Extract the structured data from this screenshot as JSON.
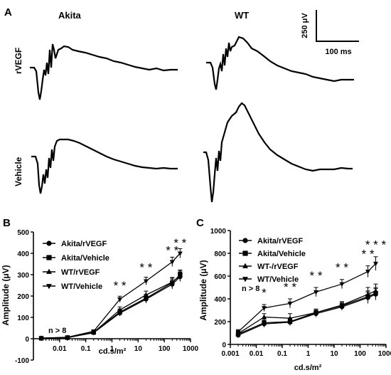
{
  "panel_a": {
    "label": "A",
    "col_akita": "Akita",
    "col_wt": "WT",
    "row_rvegf": "rVEGF",
    "row_vehicle": "Vehicle",
    "scale_amp": "250 μV",
    "scale_time": "100 ms"
  },
  "panel_b": {
    "label": "B",
    "ylabel": "Amplitude (μV)",
    "xlabel": "cd.s/m²",
    "n_note": "n > 8",
    "legend": [
      "Akita/rVEGF",
      "Akita/Vehicle",
      "WT/rVEGF",
      "WT/Vehicle"
    ]
  },
  "panel_c": {
    "label": "C",
    "ylabel": "Amplitude (μV)",
    "xlabel": "cd.s/m²",
    "n_note": "n > 8",
    "legend": [
      "Akita/rVEGF",
      "Akita/Vehicle",
      "WT-/rVEGF",
      "WT/Vehicle"
    ]
  },
  "chart_data": [
    {
      "type": "line",
      "panel": "B",
      "xscale": "log",
      "xlabel": "cd.s/m²",
      "ylabel": "Amplitude (μV)",
      "xlim": [
        0.001,
        1000
      ],
      "ylim": [
        -100,
        500
      ],
      "xticks": [
        "0.01",
        "0.1",
        "1",
        "10",
        "100",
        "1000"
      ],
      "yticks": [
        "-100",
        "0",
        "100",
        "200",
        "300",
        "400",
        "500"
      ],
      "x": [
        0.002,
        0.02,
        0.2,
        2,
        20,
        200,
        400
      ],
      "series": [
        {
          "name": "Akita/rVEGF",
          "marker": "circle",
          "values": [
            2,
            5,
            28,
            120,
            185,
            255,
            290
          ],
          "err": [
            3,
            4,
            6,
            14,
            18,
            22,
            22
          ]
        },
        {
          "name": "Akita/Vehicle",
          "marker": "square",
          "values": [
            2,
            5,
            30,
            125,
            190,
            262,
            300
          ],
          "err": [
            3,
            4,
            6,
            14,
            18,
            22,
            22
          ]
        },
        {
          "name": "WT/rVEGF",
          "marker": "triangle-up",
          "values": [
            3,
            6,
            30,
            135,
            205,
            265,
            295
          ],
          "err": [
            3,
            4,
            6,
            14,
            18,
            22,
            22
          ]
        },
        {
          "name": "WT/Vehicle",
          "marker": "triangle-down",
          "values": [
            3,
            7,
            35,
            185,
            270,
            360,
            400
          ],
          "err": [
            3,
            4,
            6,
            14,
            18,
            22,
            22
          ]
        }
      ],
      "annotations": [
        {
          "x": 2,
          "text": "* *",
          "y": 230
        },
        {
          "x": 20,
          "text": "* *",
          "y": 315
        },
        {
          "x": 200,
          "text": "* *",
          "y": 395
        },
        {
          "x": 400,
          "text": "* *",
          "y": 430
        }
      ],
      "legend_position": "top-left"
    },
    {
      "type": "line",
      "panel": "C",
      "xscale": "log",
      "xlabel": "cd.s/m²",
      "ylabel": "Amplitude (μV)",
      "xlim": [
        0.001,
        1000
      ],
      "ylim": [
        0,
        1000
      ],
      "xticks": [
        "0.001",
        "0.01",
        "0.1",
        "1",
        "10",
        "100",
        "1000"
      ],
      "yticks": [
        "0",
        "200",
        "400",
        "600",
        "800",
        "1000"
      ],
      "x": [
        0.002,
        0.02,
        0.2,
        2,
        20,
        200,
        400
      ],
      "series": [
        {
          "name": "Akita/rVEGF",
          "marker": "circle",
          "values": [
            80,
            180,
            195,
            270,
            330,
            410,
            440
          ],
          "err": [
            20,
            30,
            30,
            30,
            30,
            50,
            50
          ]
        },
        {
          "name": "Akita/Vehicle",
          "marker": "square",
          "values": [
            90,
            190,
            200,
            280,
            340,
            420,
            450
          ],
          "err": [
            20,
            30,
            30,
            30,
            30,
            50,
            50
          ]
        },
        {
          "name": "WT-/rVEGF",
          "marker": "triangle-up",
          "values": [
            95,
            240,
            230,
            280,
            345,
            440,
            470
          ],
          "err": [
            20,
            30,
            40,
            30,
            30,
            60,
            60
          ]
        },
        {
          "name": "WT/Vehicle",
          "marker": "triangle-down",
          "values": [
            110,
            320,
            360,
            460,
            530,
            640,
            710
          ],
          "err": [
            20,
            30,
            40,
            40,
            40,
            50,
            60
          ]
        }
      ],
      "annotations": [
        {
          "x": 0.02,
          "text": "*",
          "y": 420
        },
        {
          "x": 0.2,
          "text": "* *",
          "y": 470
        },
        {
          "x": 2,
          "text": "* *",
          "y": 570
        },
        {
          "x": 20,
          "text": "* *",
          "y": 640
        },
        {
          "x": 200,
          "text": "* *",
          "y": 760
        },
        {
          "x": 400,
          "text": "* * *",
          "y": 840
        }
      ],
      "legend_position": "top-left"
    }
  ]
}
